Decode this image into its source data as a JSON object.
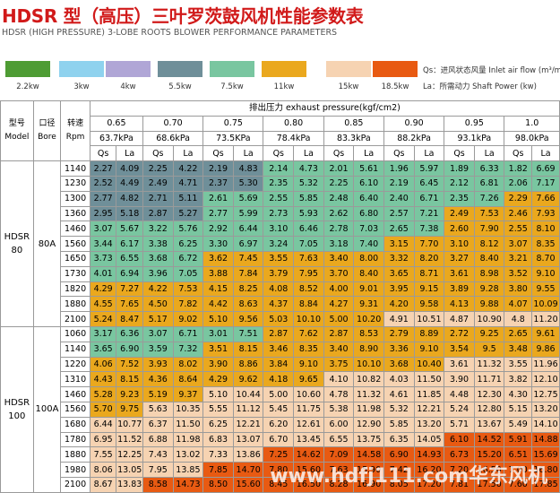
{
  "title": "HDSR 型（高压）三叶罗茨鼓风机性能参数表",
  "subtitle": "HDSR (HIGH PRESSURE) 3-LOBE ROOTS BLOWER PERFORMANCE PARAMETERS",
  "legend": [
    {
      "label": "2.2kw",
      "color": "#4e9c34"
    },
    {
      "label": "3kw",
      "color": "#8fd2ee"
    },
    {
      "label": "4kw",
      "color": "#b0a6d6"
    },
    {
      "label": "5.5kw",
      "color": "#6f8f99"
    },
    {
      "label": "7.5kw",
      "color": "#79c6a0"
    },
    {
      "label": "11kw",
      "color": "#eaa81e"
    },
    {
      "label": "15kw",
      "color": "#f6d3b2"
    },
    {
      "label": "18.5kw",
      "color": "#e85a12"
    }
  ],
  "notes": {
    "qs": "Qs：进风状态风量 Inlet air flow (m³/min)",
    "la": "La：所需动力 Shaft Power (kw)"
  },
  "header": {
    "model_cn": "型号",
    "model_en": "Model",
    "bore_cn": "口径",
    "bore_en": "Bore",
    "speed_cn": "转速",
    "speed_en": "Rpm",
    "pressure_label": "排出压力 exhaust pressure(kgf/cm2)",
    "pressures_kgf": [
      "0.65",
      "0.70",
      "0.75",
      "0.80",
      "0.85",
      "0.90",
      "0.95",
      "1.0"
    ],
    "pressures_kpa": [
      "63.7kPa",
      "68.6kPa",
      "73.5KPa",
      "78.4kPa",
      "83.3kPa",
      "88.2kPa",
      "93.1kPa",
      "98.0kPa"
    ],
    "qs": "Qs",
    "la": "La"
  },
  "groups": [
    {
      "model": "HDSR 80",
      "bore": "80A",
      "rows": [
        {
          "rpm": "1140",
          "cells": [
            [
              "2.27",
              "4.09",
              "5_5"
            ],
            [
              "2.25",
              "4.22",
              "5_5"
            ],
            [
              "2.19",
              "4.83",
              "5_5"
            ],
            [
              "2.14",
              "4.73",
              "7_5"
            ],
            [
              "2.01",
              "5.61",
              "7_5"
            ],
            [
              "1.96",
              "5.97",
              "7_5"
            ],
            [
              "1.89",
              "6.33",
              "7_5"
            ],
            [
              "1.82",
              "6.69",
              "7_5"
            ]
          ]
        },
        {
          "rpm": "1230",
          "cells": [
            [
              "2.52",
              "4.49",
              "5_5"
            ],
            [
              "2.49",
              "4.71",
              "5_5"
            ],
            [
              "2.37",
              "5.30",
              "5_5"
            ],
            [
              "2.35",
              "5.32",
              "7_5"
            ],
            [
              "2.25",
              "6.10",
              "7_5"
            ],
            [
              "2.19",
              "6.45",
              "7_5"
            ],
            [
              "2.12",
              "6.81",
              "7_5"
            ],
            [
              "2.06",
              "7.17",
              "7_5"
            ]
          ]
        },
        {
          "rpm": "1300",
          "cells": [
            [
              "2.77",
              "4.82",
              "5_5"
            ],
            [
              "2.71",
              "5.11",
              "5_5"
            ],
            [
              "2.61",
              "5.69",
              "7_5"
            ],
            [
              "2.55",
              "5.85",
              "7_5"
            ],
            [
              "2.48",
              "6.40",
              "7_5"
            ],
            [
              "2.40",
              "6.71",
              "7_5"
            ],
            [
              "2.35",
              "7.26",
              "7_5"
            ],
            [
              "2.29",
              "7.66",
              "11"
            ]
          ]
        },
        {
          "rpm": "1360",
          "cells": [
            [
              "2.95",
              "5.18",
              "5_5"
            ],
            [
              "2.87",
              "5.27",
              "5_5"
            ],
            [
              "2.77",
              "5.99",
              "7_5"
            ],
            [
              "2.73",
              "5.93",
              "7_5"
            ],
            [
              "2.62",
              "6.80",
              "7_5"
            ],
            [
              "2.57",
              "7.21",
              "7_5"
            ],
            [
              "2.49",
              "7.53",
              "11"
            ],
            [
              "2.46",
              "7.93",
              "11"
            ]
          ]
        },
        {
          "rpm": "1460",
          "cells": [
            [
              "3.07",
              "5.67",
              "7_5"
            ],
            [
              "3.22",
              "5.76",
              "7_5"
            ],
            [
              "2.92",
              "6.44",
              "7_5"
            ],
            [
              "3.10",
              "6.46",
              "7_5"
            ],
            [
              "2.78",
              "7.03",
              "7_5"
            ],
            [
              "2.65",
              "7.38",
              "7_5"
            ],
            [
              "2.60",
              "7.90",
              "11"
            ],
            [
              "2.55",
              "8.10",
              "11"
            ]
          ]
        },
        {
          "rpm": "1560",
          "cells": [
            [
              "3.44",
              "6.17",
              "7_5"
            ],
            [
              "3.38",
              "6.25",
              "7_5"
            ],
            [
              "3.30",
              "6.97",
              "7_5"
            ],
            [
              "3.24",
              "7.05",
              "7_5"
            ],
            [
              "3.18",
              "7.40",
              "7_5"
            ],
            [
              "3.15",
              "7.70",
              "11"
            ],
            [
              "3.10",
              "8.12",
              "11"
            ],
            [
              "3.07",
              "8.35",
              "11"
            ]
          ]
        },
        {
          "rpm": "1650",
          "cells": [
            [
              "3.73",
              "6.55",
              "7_5"
            ],
            [
              "3.68",
              "6.72",
              "7_5"
            ],
            [
              "3.62",
              "7.45",
              "11"
            ],
            [
              "3.55",
              "7.63",
              "11"
            ],
            [
              "3.40",
              "8.00",
              "11"
            ],
            [
              "3.32",
              "8.20",
              "11"
            ],
            [
              "3.27",
              "8.40",
              "11"
            ],
            [
              "3.21",
              "8.70",
              "11"
            ]
          ]
        },
        {
          "rpm": "1730",
          "cells": [
            [
              "4.01",
              "6.94",
              "7_5"
            ],
            [
              "3.96",
              "7.05",
              "7_5"
            ],
            [
              "3.88",
              "7.84",
              "11"
            ],
            [
              "3.79",
              "7.95",
              "11"
            ],
            [
              "3.70",
              "8.40",
              "11"
            ],
            [
              "3.65",
              "8.71",
              "11"
            ],
            [
              "3.61",
              "8.98",
              "11"
            ],
            [
              "3.52",
              "9.10",
              "11"
            ]
          ]
        },
        {
          "rpm": "1820",
          "cells": [
            [
              "4.29",
              "7.27",
              "11"
            ],
            [
              "4.22",
              "7.53",
              "11"
            ],
            [
              "4.15",
              "8.25",
              "11"
            ],
            [
              "4.08",
              "8.52",
              "11"
            ],
            [
              "4.00",
              "9.01",
              "11"
            ],
            [
              "3.95",
              "9.15",
              "11"
            ],
            [
              "3.89",
              "9.28",
              "11"
            ],
            [
              "3.80",
              "9.55",
              "11"
            ]
          ]
        },
        {
          "rpm": "1880",
          "cells": [
            [
              "4.55",
              "7.65",
              "11"
            ],
            [
              "4.50",
              "7.82",
              "11"
            ],
            [
              "4.42",
              "8.63",
              "11"
            ],
            [
              "4.37",
              "8.84",
              "11"
            ],
            [
              "4.27",
              "9.31",
              "11"
            ],
            [
              "4.20",
              "9.58",
              "11"
            ],
            [
              "4.13",
              "9.88",
              "11"
            ],
            [
              "4.07",
              "10.09",
              "11"
            ]
          ]
        },
        {
          "rpm": "2100",
          "cells": [
            [
              "5.24",
              "8.47",
              "11"
            ],
            [
              "5.17",
              "9.02",
              "11"
            ],
            [
              "5.10",
              "9.56",
              "11"
            ],
            [
              "5.03",
              "10.10",
              "11"
            ],
            [
              "5.00",
              "10.20",
              "11"
            ],
            [
              "4.91",
              "10.51",
              "15"
            ],
            [
              "4.87",
              "10.90",
              "15"
            ],
            [
              "4.8",
              "11.20",
              "15"
            ]
          ]
        }
      ]
    },
    {
      "model": "HDSR 100",
      "bore": "100A",
      "rows": [
        {
          "rpm": "1060",
          "cells": [
            [
              "3.17",
              "6.36",
              "7_5"
            ],
            [
              "3.07",
              "6.71",
              "7_5"
            ],
            [
              "3.01",
              "7.51",
              "7_5"
            ],
            [
              "2.87",
              "7.62",
              "11"
            ],
            [
              "2.87",
              "8.53",
              "11"
            ],
            [
              "2.79",
              "8.89",
              "11"
            ],
            [
              "2.72",
              "9.25",
              "11"
            ],
            [
              "2.65",
              "9.61",
              "11"
            ]
          ]
        },
        {
          "rpm": "1140",
          "cells": [
            [
              "3.65",
              "6.90",
              "7_5"
            ],
            [
              "3.59",
              "7.32",
              "7_5"
            ],
            [
              "3.51",
              "8.15",
              "11"
            ],
            [
              "3.46",
              "8.35",
              "11"
            ],
            [
              "3.40",
              "8.90",
              "11"
            ],
            [
              "3.36",
              "9.10",
              "11"
            ],
            [
              "3.54",
              "9.5",
              "11"
            ],
            [
              "3.48",
              "9.86",
              "11"
            ]
          ]
        },
        {
          "rpm": "1220",
          "cells": [
            [
              "4.06",
              "7.52",
              "11"
            ],
            [
              "3.93",
              "8.02",
              "11"
            ],
            [
              "3.90",
              "8.86",
              "11"
            ],
            [
              "3.84",
              "9.10",
              "11"
            ],
            [
              "3.75",
              "10.10",
              "11"
            ],
            [
              "3.68",
              "10.40",
              "11"
            ],
            [
              "3.61",
              "11.32",
              "15"
            ],
            [
              "3.55",
              "11.96",
              "15"
            ]
          ]
        },
        {
          "rpm": "1310",
          "cells": [
            [
              "4.43",
              "8.15",
              "11"
            ],
            [
              "4.36",
              "8.64",
              "11"
            ],
            [
              "4.29",
              "9.62",
              "11"
            ],
            [
              "4.18",
              "9.65",
              "11"
            ],
            [
              "4.10",
              "10.82",
              "15"
            ],
            [
              "4.03",
              "11.50",
              "15"
            ],
            [
              "3.90",
              "11.71",
              "15"
            ],
            [
              "3.82",
              "12.10",
              "15"
            ]
          ]
        },
        {
          "rpm": "1460",
          "cells": [
            [
              "5.28",
              "9.23",
              "11"
            ],
            [
              "5.19",
              "9.37",
              "11"
            ],
            [
              "5.10",
              "10.44",
              "15"
            ],
            [
              "5.00",
              "10.60",
              "15"
            ],
            [
              "4.78",
              "11.32",
              "15"
            ],
            [
              "4.61",
              "11.85",
              "15"
            ],
            [
              "4.48",
              "12.30",
              "15"
            ],
            [
              "4.30",
              "12.75",
              "15"
            ]
          ]
        },
        {
          "rpm": "1560",
          "cells": [
            [
              "5.70",
              "9.75",
              "11"
            ],
            [
              "5.63",
              "10.35",
              "15"
            ],
            [
              "5.55",
              "11.12",
              "15"
            ],
            [
              "5.45",
              "11.75",
              "15"
            ],
            [
              "5.38",
              "11.98",
              "15"
            ],
            [
              "5.32",
              "12.21",
              "15"
            ],
            [
              "5.24",
              "12.80",
              "15"
            ],
            [
              "5.15",
              "13.20",
              "15"
            ]
          ]
        },
        {
          "rpm": "1680",
          "cells": [
            [
              "6.44",
              "10.77",
              "15"
            ],
            [
              "6.37",
              "11.50",
              "15"
            ],
            [
              "6.25",
              "12.21",
              "15"
            ],
            [
              "6.20",
              "12.61",
              "15"
            ],
            [
              "6.00",
              "12.90",
              "15"
            ],
            [
              "5.85",
              "13.20",
              "15"
            ],
            [
              "5.71",
              "13.67",
              "15"
            ],
            [
              "5.49",
              "14.10",
              "15"
            ]
          ]
        },
        {
          "rpm": "1780",
          "cells": [
            [
              "6.95",
              "11.52",
              "15"
            ],
            [
              "6.88",
              "11.98",
              "15"
            ],
            [
              "6.83",
              "13.07",
              "15"
            ],
            [
              "6.70",
              "13.45",
              "15"
            ],
            [
              "6.55",
              "13.75",
              "15"
            ],
            [
              "6.35",
              "14.05",
              "15"
            ],
            [
              "6.10",
              "14.52",
              "18_5"
            ],
            [
              "5.91",
              "14.88",
              "18_5"
            ]
          ]
        },
        {
          "rpm": "1880",
          "cells": [
            [
              "7.55",
              "12.25",
              "15"
            ],
            [
              "7.43",
              "13.02",
              "15"
            ],
            [
              "7.33",
              "13.86",
              "15"
            ],
            [
              "7.25",
              "14.62",
              "18_5"
            ],
            [
              "7.09",
              "14.58",
              "18_5"
            ],
            [
              "6.90",
              "14.93",
              "18_5"
            ],
            [
              "6.73",
              "15.20",
              "18_5"
            ],
            [
              "6.51",
              "15.69",
              "18_5"
            ]
          ]
        },
        {
          "rpm": "1980",
          "cells": [
            [
              "8.06",
              "13.05",
              "15"
            ],
            [
              "7.95",
              "13.85",
              "15"
            ],
            [
              "7.85",
              "14.70",
              "18_5"
            ],
            [
              "7.80",
              "15.60",
              "18_5"
            ],
            [
              "7.63",
              "15.90",
              "18_5"
            ],
            [
              "7.42",
              "16.20",
              "18_5"
            ],
            [
              "7.20",
              "16.50",
              "18_5"
            ],
            [
              "7.00",
              "16.80",
              "18_5"
            ]
          ]
        },
        {
          "rpm": "2100",
          "cells": [
            [
              "8.67",
              "13.83",
              "15"
            ],
            [
              "8.58",
              "14.73",
              "18_5"
            ],
            [
              "8.50",
              "15.60",
              "18_5"
            ],
            [
              "8.45",
              "16.50",
              "18_5"
            ],
            [
              "8.28",
              "16.90",
              "18_5"
            ],
            [
              "8.05",
              "17.20",
              "18_5"
            ],
            [
              "7.81",
              "17.50",
              "18_5"
            ],
            [
              "7.60",
              "17.85",
              "18_5"
            ]
          ]
        }
      ]
    }
  ],
  "watermark": "www.hdfj111.com华东风机"
}
